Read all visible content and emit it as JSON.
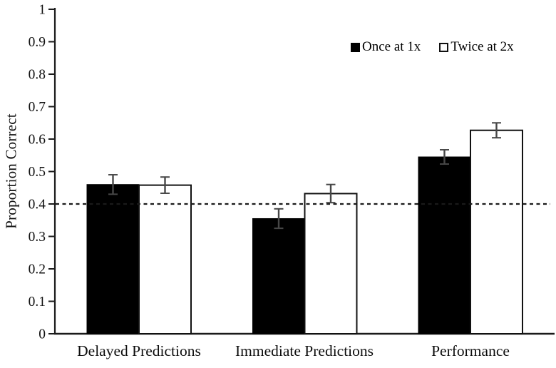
{
  "figure": {
    "background": "#ffffff",
    "axis_color": "#1a1a1a",
    "error_bar_color": "#474747",
    "text_color": "#111111"
  },
  "chart_data": {
    "type": "bar",
    "title": "",
    "xlabel": "",
    "ylabel": "Proportion Correct",
    "categories": [
      "Delayed Predictions",
      "Immediate Predictions",
      "Performance"
    ],
    "series": [
      {
        "name": "Once at 1x",
        "fill": "#000000",
        "border": "#000000",
        "values": [
          0.46,
          0.355,
          0.545
        ],
        "errors": [
          0.03,
          0.03,
          0.022
        ]
      },
      {
        "name": "Twice at 2x",
        "fill": "#ffffff",
        "border": "#111111",
        "values": [
          0.458,
          0.432,
          0.627
        ],
        "errors": [
          0.025,
          0.028,
          0.023
        ]
      }
    ],
    "ylim": [
      0,
      1
    ],
    "yticks": {
      "values": [
        0,
        0.1,
        0.2,
        0.3,
        0.4,
        0.5,
        0.6,
        0.7,
        0.8,
        0.9,
        1
      ],
      "labels": [
        "0",
        "0.1",
        "0.2",
        "0.3",
        "0.4",
        "0.5",
        "0.6",
        "0.7",
        "0.8",
        "0.9",
        "1"
      ]
    },
    "reference_line": {
      "value": 0.4,
      "style": "dashed"
    },
    "legend": {
      "position": "top-right"
    },
    "grid": false,
    "error_bars": true
  }
}
